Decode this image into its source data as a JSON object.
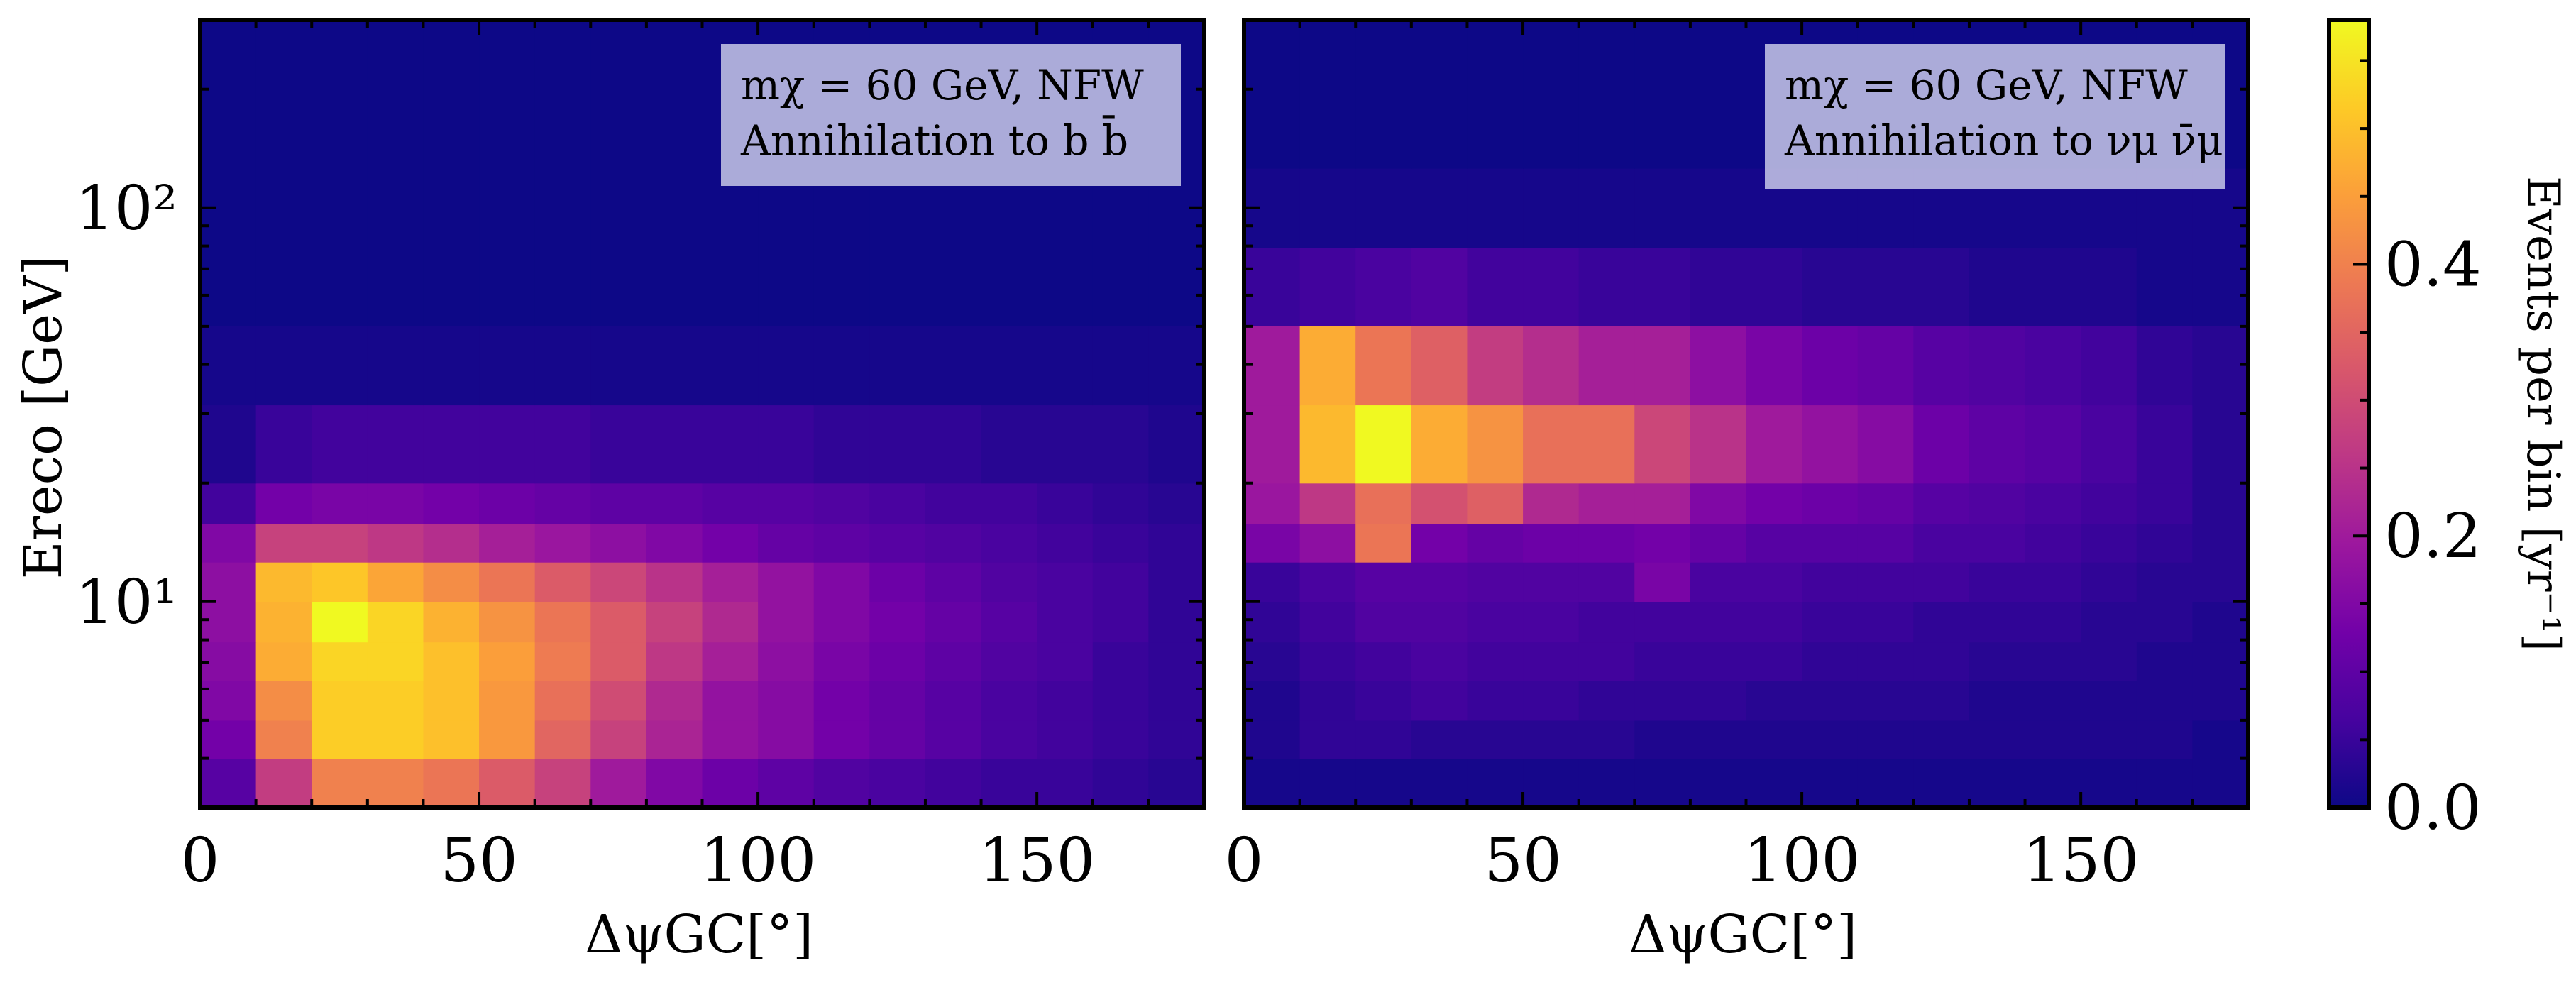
{
  "colorbar": {
    "label": "Events per bin [yr⁻¹]",
    "ticks": [
      {
        "value": 0.0,
        "label": "0.0"
      },
      {
        "value": 0.2,
        "label": "0.2"
      },
      {
        "value": 0.4,
        "label": "0.4"
      }
    ],
    "range": [
      0.0,
      0.58
    ],
    "colormap": "plasma",
    "colormap_stops": [
      "#0d0887",
      "#46039f",
      "#7201a8",
      "#9c179e",
      "#bd3786",
      "#d8576b",
      "#ed7953",
      "#fb9f3a",
      "#fdca26",
      "#f0f921"
    ]
  },
  "chart_data": [
    {
      "type": "heatmap",
      "legend": {
        "line1": "mχ = 60 GeV, NFW",
        "line2": "Annihilation to b b̄",
        "placement": "top-right"
      },
      "xlabel": "ΔψGC[°]",
      "ylabel": "Ereco [GeV]",
      "xlim": [
        0,
        180
      ],
      "x_ticks": [
        {
          "value": 0,
          "label": "0"
        },
        {
          "value": 50,
          "label": "50"
        },
        {
          "value": 100,
          "label": "100"
        },
        {
          "value": 150,
          "label": "150"
        }
      ],
      "ylim": [
        3.0,
        300
      ],
      "yscale": "log",
      "y_ticks": [
        {
          "value": 10,
          "label": "10¹"
        },
        {
          "value": 100,
          "label": "10²"
        }
      ],
      "x_edges": [
        0,
        10,
        20,
        30,
        40,
        50,
        60,
        70,
        80,
        90,
        100,
        110,
        120,
        130,
        140,
        150,
        160,
        170,
        180
      ],
      "y_edges": [
        3.0,
        4.0,
        5.0,
        6.3,
        7.9,
        10.0,
        12.6,
        15.8,
        20.0,
        31.6,
        50.1,
        79.4,
        300
      ],
      "values": [
        [
          0.09,
          0.27,
          0.4,
          0.4,
          0.38,
          0.33,
          0.28,
          0.2,
          0.15,
          0.12,
          0.1,
          0.08,
          0.07,
          0.06,
          0.05,
          0.05,
          0.04,
          0.03
        ],
        [
          0.13,
          0.4,
          0.52,
          0.52,
          0.5,
          0.44,
          0.35,
          0.28,
          0.22,
          0.18,
          0.16,
          0.13,
          0.11,
          0.09,
          0.07,
          0.06,
          0.05,
          0.04
        ],
        [
          0.15,
          0.42,
          0.52,
          0.52,
          0.5,
          0.44,
          0.37,
          0.3,
          0.23,
          0.18,
          0.16,
          0.13,
          0.11,
          0.09,
          0.07,
          0.06,
          0.05,
          0.04
        ],
        [
          0.16,
          0.47,
          0.53,
          0.53,
          0.5,
          0.45,
          0.39,
          0.33,
          0.26,
          0.21,
          0.17,
          0.14,
          0.12,
          0.1,
          0.08,
          0.07,
          0.05,
          0.04
        ],
        [
          0.17,
          0.48,
          0.58,
          0.53,
          0.48,
          0.43,
          0.38,
          0.33,
          0.28,
          0.23,
          0.18,
          0.15,
          0.13,
          0.11,
          0.09,
          0.07,
          0.06,
          0.04
        ],
        [
          0.17,
          0.49,
          0.51,
          0.46,
          0.42,
          0.38,
          0.33,
          0.29,
          0.25,
          0.21,
          0.18,
          0.15,
          0.12,
          0.1,
          0.08,
          0.07,
          0.06,
          0.04
        ],
        [
          0.15,
          0.28,
          0.28,
          0.26,
          0.24,
          0.21,
          0.19,
          0.17,
          0.15,
          0.13,
          0.11,
          0.1,
          0.09,
          0.08,
          0.07,
          0.06,
          0.05,
          0.04
        ],
        [
          0.06,
          0.13,
          0.14,
          0.14,
          0.13,
          0.12,
          0.11,
          0.1,
          0.1,
          0.09,
          0.09,
          0.08,
          0.07,
          0.06,
          0.06,
          0.05,
          0.04,
          0.03
        ],
        [
          0.02,
          0.05,
          0.06,
          0.06,
          0.06,
          0.06,
          0.06,
          0.05,
          0.05,
          0.05,
          0.05,
          0.04,
          0.04,
          0.04,
          0.03,
          0.03,
          0.03,
          0.02
        ],
        [
          0.01,
          0.01,
          0.01,
          0.01,
          0.01,
          0.01,
          0.01,
          0.01,
          0.01,
          0.01,
          0.01,
          0.01,
          0.01,
          0.01,
          0.01,
          0.01,
          0.01,
          0.01
        ],
        [
          0.0,
          0.0,
          0.0,
          0.0,
          0.0,
          0.0,
          0.0,
          0.0,
          0.0,
          0.0,
          0.0,
          0.0,
          0.0,
          0.0,
          0.0,
          0.0,
          0.0,
          0.0
        ],
        [
          0.0,
          0.0,
          0.0,
          0.0,
          0.0,
          0.0,
          0.0,
          0.0,
          0.0,
          0.0,
          0.0,
          0.0,
          0.0,
          0.0,
          0.0,
          0.0,
          0.0,
          0.0
        ]
      ]
    },
    {
      "type": "heatmap",
      "legend": {
        "line1": "mχ = 60 GeV, NFW",
        "line2": "Annihilation to νμ ν̄μ",
        "placement": "top-right"
      },
      "xlabel": "ΔψGC[°]",
      "xlim": [
        0,
        180
      ],
      "x_ticks": [
        {
          "value": 0,
          "label": "0"
        },
        {
          "value": 50,
          "label": "50"
        },
        {
          "value": 100,
          "label": "100"
        },
        {
          "value": 150,
          "label": "150"
        }
      ],
      "ylim": [
        3.0,
        300
      ],
      "yscale": "log",
      "x_edges": [
        0,
        10,
        20,
        30,
        40,
        50,
        60,
        70,
        80,
        90,
        100,
        110,
        120,
        130,
        140,
        150,
        160,
        170,
        180
      ],
      "y_edges": [
        3.0,
        4.0,
        5.0,
        6.3,
        7.9,
        10.0,
        12.6,
        15.8,
        20.0,
        31.6,
        50.1,
        79.4,
        126,
        300
      ],
      "values": [
        [
          0.01,
          0.01,
          0.01,
          0.01,
          0.01,
          0.01,
          0.01,
          0.01,
          0.01,
          0.01,
          0.01,
          0.01,
          0.01,
          0.01,
          0.01,
          0.01,
          0.01,
          0.01
        ],
        [
          0.02,
          0.04,
          0.04,
          0.03,
          0.03,
          0.03,
          0.03,
          0.02,
          0.02,
          0.02,
          0.02,
          0.02,
          0.02,
          0.02,
          0.02,
          0.02,
          0.02,
          0.01
        ],
        [
          0.02,
          0.04,
          0.05,
          0.06,
          0.05,
          0.05,
          0.04,
          0.04,
          0.04,
          0.03,
          0.03,
          0.03,
          0.03,
          0.02,
          0.02,
          0.02,
          0.02,
          0.02
        ],
        [
          0.03,
          0.05,
          0.06,
          0.07,
          0.06,
          0.06,
          0.06,
          0.05,
          0.05,
          0.05,
          0.04,
          0.04,
          0.04,
          0.03,
          0.03,
          0.03,
          0.02,
          0.02
        ],
        [
          0.04,
          0.06,
          0.08,
          0.08,
          0.07,
          0.07,
          0.06,
          0.06,
          0.06,
          0.06,
          0.05,
          0.05,
          0.04,
          0.04,
          0.04,
          0.03,
          0.03,
          0.02
        ],
        [
          0.05,
          0.07,
          0.09,
          0.09,
          0.08,
          0.08,
          0.08,
          0.14,
          0.07,
          0.07,
          0.06,
          0.06,
          0.06,
          0.05,
          0.05,
          0.04,
          0.03,
          0.03
        ],
        [
          0.14,
          0.17,
          0.38,
          0.13,
          0.11,
          0.12,
          0.12,
          0.13,
          0.11,
          0.09,
          0.09,
          0.09,
          0.07,
          0.07,
          0.06,
          0.05,
          0.04,
          0.03
        ],
        [
          0.19,
          0.26,
          0.37,
          0.31,
          0.34,
          0.23,
          0.21,
          0.21,
          0.15,
          0.13,
          0.12,
          0.11,
          0.09,
          0.08,
          0.07,
          0.06,
          0.05,
          0.03
        ],
        [
          0.2,
          0.49,
          0.58,
          0.47,
          0.43,
          0.37,
          0.37,
          0.29,
          0.25,
          0.2,
          0.18,
          0.16,
          0.12,
          0.1,
          0.09,
          0.07,
          0.05,
          0.03
        ],
        [
          0.2,
          0.47,
          0.38,
          0.34,
          0.27,
          0.24,
          0.21,
          0.21,
          0.17,
          0.14,
          0.12,
          0.11,
          0.09,
          0.08,
          0.07,
          0.06,
          0.04,
          0.03
        ],
        [
          0.05,
          0.06,
          0.07,
          0.08,
          0.06,
          0.06,
          0.05,
          0.05,
          0.04,
          0.04,
          0.03,
          0.03,
          0.03,
          0.02,
          0.02,
          0.02,
          0.01,
          0.01
        ],
        [
          0.01,
          0.01,
          0.01,
          0.01,
          0.01,
          0.01,
          0.01,
          0.01,
          0.01,
          0.01,
          0.01,
          0.01,
          0.01,
          0.01,
          0.01,
          0.01,
          0.01,
          0.01
        ],
        [
          0.0,
          0.0,
          0.0,
          0.0,
          0.0,
          0.0,
          0.0,
          0.0,
          0.0,
          0.0,
          0.0,
          0.0,
          0.0,
          0.0,
          0.0,
          0.0,
          0.0,
          0.0
        ]
      ]
    }
  ]
}
